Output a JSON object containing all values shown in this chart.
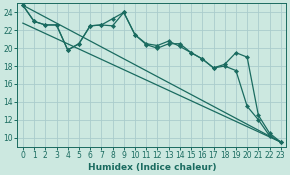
{
  "xlabel": "Humidex (Indice chaleur)",
  "ylabel": "",
  "background_color": "#cce8e0",
  "grid_color": "#aacccc",
  "line_color": "#1a6b60",
  "xlim": [
    -0.5,
    23.5
  ],
  "ylim": [
    9,
    25
  ],
  "yticks": [
    10,
    12,
    14,
    16,
    18,
    20,
    22,
    24
  ],
  "xticks": [
    0,
    1,
    2,
    3,
    4,
    5,
    6,
    7,
    8,
    9,
    10,
    11,
    12,
    13,
    14,
    15,
    16,
    17,
    18,
    19,
    20,
    21,
    22,
    23
  ],
  "series": [
    {
      "x": [
        0,
        1,
        2,
        3,
        4,
        5,
        6,
        7,
        8,
        9,
        10,
        11,
        12,
        13,
        14,
        15,
        16,
        17,
        18,
        19,
        20,
        21,
        22,
        23
      ],
      "y": [
        24.8,
        23.0,
        22.6,
        22.6,
        19.8,
        20.5,
        22.5,
        22.6,
        23.3,
        24.0,
        21.5,
        20.5,
        20.3,
        20.8,
        20.2,
        19.5,
        18.8,
        17.8,
        18.2,
        19.5,
        19.0,
        12.5,
        10.5,
        9.5
      ]
    },
    {
      "x": [
        0,
        1,
        2,
        3,
        4,
        5,
        6,
        7,
        8,
        9,
        10,
        11,
        12,
        13,
        14,
        15,
        16,
        17,
        18,
        19,
        20,
        21,
        22,
        23
      ],
      "y": [
        24.8,
        23.0,
        22.6,
        22.6,
        19.8,
        20.5,
        22.5,
        22.6,
        22.5,
        24.0,
        21.5,
        20.4,
        20.0,
        20.5,
        20.5,
        19.5,
        18.8,
        17.8,
        18.0,
        17.5,
        13.5,
        12.0,
        10.2,
        9.5
      ]
    },
    {
      "x": [
        0,
        23
      ],
      "y": [
        24.8,
        9.5
      ]
    },
    {
      "x": [
        0,
        23
      ],
      "y": [
        22.8,
        9.5
      ]
    }
  ]
}
